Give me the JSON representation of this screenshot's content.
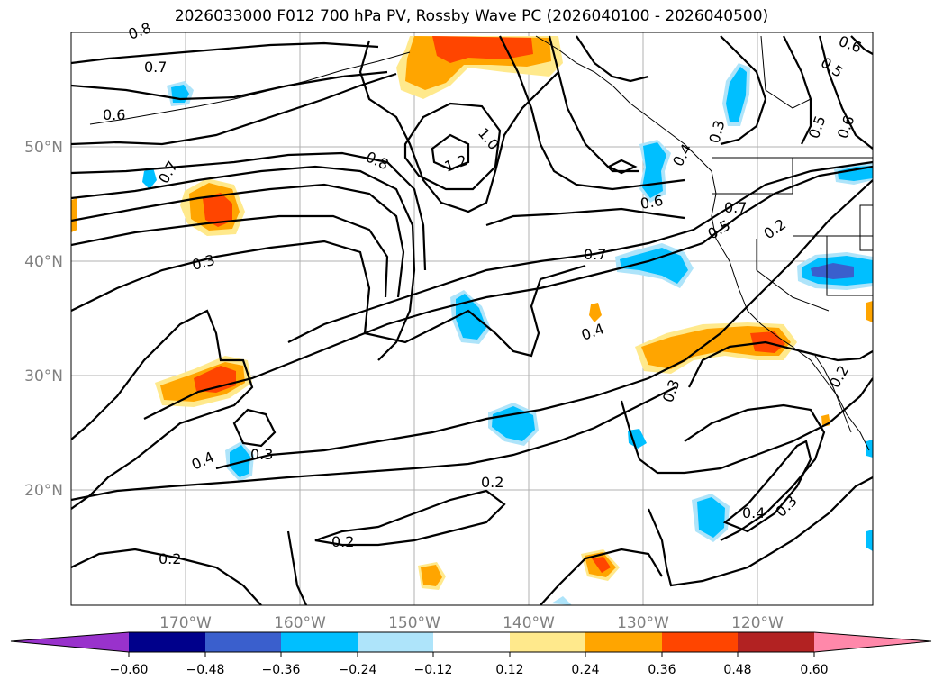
{
  "title": "2026033000 F012 700 hPa PV, Rossby Wave PC (2026040100 - 2026040500)",
  "lat_labels": [
    "50°N",
    "40°N",
    "30°N",
    "20°N"
  ],
  "lon_labels": [
    "170°W",
    "160°W",
    "150°W",
    "140°W",
    "130°W",
    "120°W"
  ],
  "contour_labels": [
    "0.8",
    "0.7",
    "0.6",
    "0.7",
    "0.3",
    "0.8",
    "1.0",
    "1.2",
    "0.6",
    "0.7",
    "0.5",
    "0.2",
    "0.7",
    "0.4",
    "0.3",
    "0.4",
    "0.3",
    "0.2",
    "0.2",
    "0.2",
    "0.4",
    "0.3",
    "0.5",
    "0.6",
    "0.6",
    "0.5",
    "0.3",
    "0.4",
    "0.2"
  ],
  "colorbar": {
    "tick_labels": [
      "−0.60",
      "−0.48",
      "−0.36",
      "−0.24",
      "−0.12",
      "0.12",
      "0.24",
      "0.36",
      "0.48",
      "0.60"
    ],
    "colors": [
      "#9932cc",
      "#00008b",
      "#3a5fcd",
      "#00bfff",
      "#aee4fa",
      "#ffffff",
      "#ffe98c",
      "#ffa500",
      "#ff4500",
      "#b22222",
      "#ff88aa"
    ]
  },
  "fill_colors": {
    "pos1": "#ffe98c",
    "pos2": "#ffa500",
    "pos3": "#ff4500",
    "neg1": "#aee4fa",
    "neg2": "#00bfff",
    "neg3": "#3a5fcd"
  }
}
